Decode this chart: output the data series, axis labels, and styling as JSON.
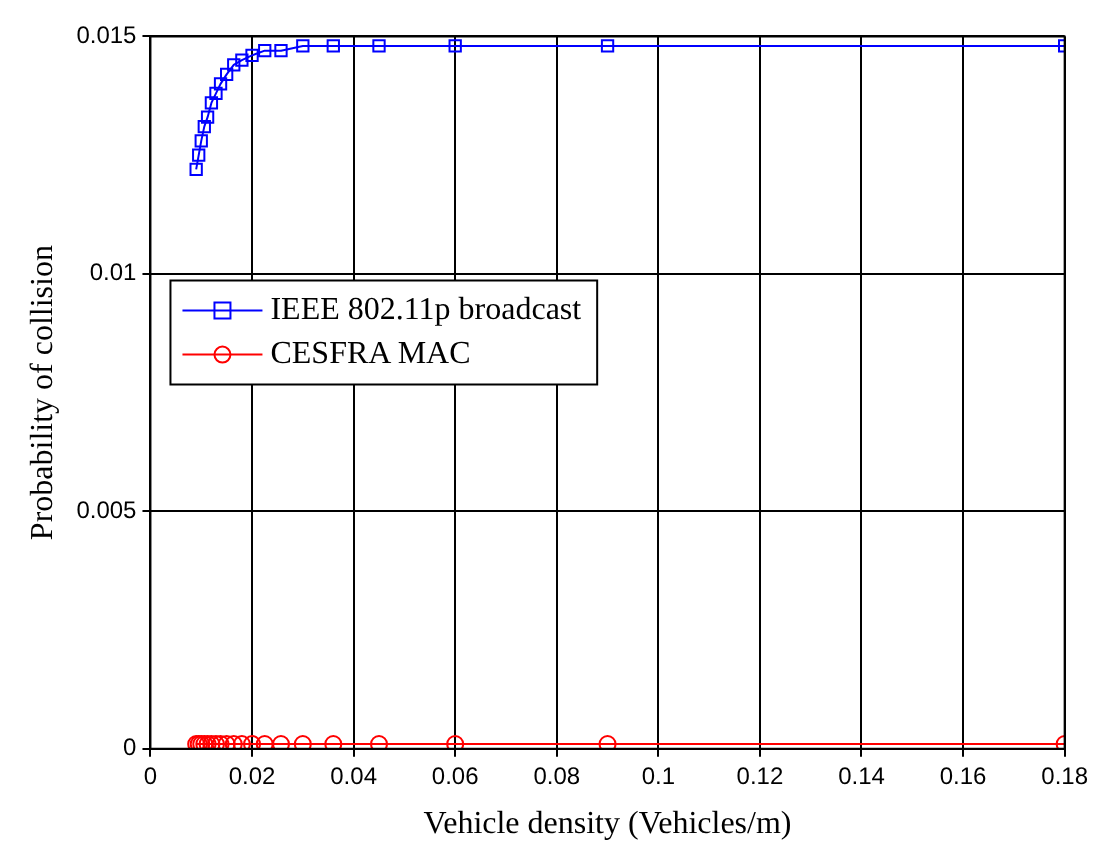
{
  "chart_data": {
    "type": "line",
    "xlabel": "Vehicle density (Vehicles/m)",
    "ylabel": "Probability of collision",
    "x": [
      0.009,
      0.0095,
      0.01,
      0.0106,
      0.01125,
      0.012,
      0.0129,
      0.0138,
      0.015,
      0.0164,
      0.018,
      0.02,
      0.0225,
      0.0257,
      0.03,
      0.036,
      0.045,
      0.06,
      0.09,
      0.18
    ],
    "series": [
      {
        "name": "IEEE 802.11p broadcast",
        "color": "#0000ff",
        "marker": "square",
        "values": [
          0.0122,
          0.0125,
          0.0128,
          0.0131,
          0.0133,
          0.0136,
          0.0138,
          0.014,
          0.0142,
          0.0144,
          0.0145,
          0.0146,
          0.0147,
          0.0147,
          0.0148,
          0.0148,
          0.0148,
          0.0148,
          0.0148,
          0.0148
        ]
      },
      {
        "name": "CESFRA MAC",
        "color": "#ff0000",
        "marker": "circle",
        "values": [
          0.0001,
          0.0001,
          0.0001,
          0.0001,
          0.0001,
          0.0001,
          0.0001,
          0.0001,
          0.0001,
          0.0001,
          0.0001,
          0.0001,
          0.0001,
          0.0001,
          0.0001,
          0.0001,
          0.0001,
          0.0001,
          0.0001,
          0.0001
        ]
      }
    ],
    "xlim": [
      0,
      0.18
    ],
    "xticks": [
      0,
      0.02,
      0.04,
      0.06,
      0.08,
      0.1,
      0.12,
      0.14,
      0.16,
      0.18
    ],
    "ylim": [
      0,
      0.015
    ],
    "yticks": [
      0,
      0.005,
      0.01,
      0.015
    ],
    "grid": true,
    "legend": "center left",
    "line_style": "solid"
  }
}
